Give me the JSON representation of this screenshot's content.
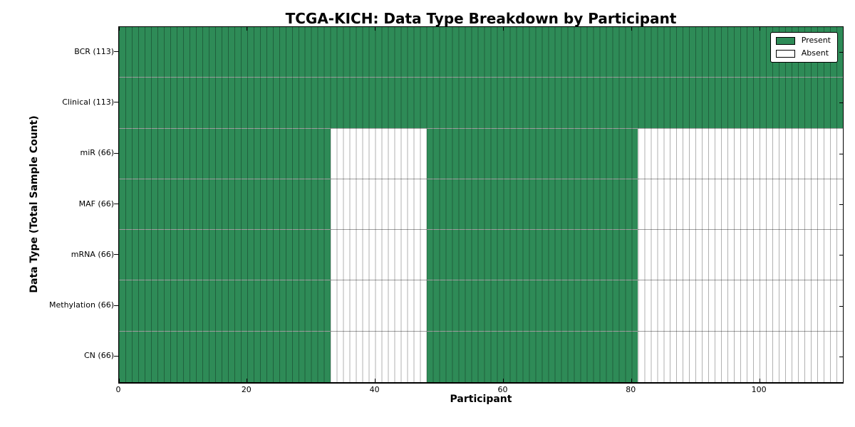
{
  "title": "TCGA-KICH: Data Type Breakdown by Participant",
  "xlabel": "Participant",
  "ylabel": "Data Type (Total Sample Count)",
  "legend": {
    "present_label": "Present",
    "absent_label": "Absent"
  },
  "colors": {
    "present": "#2e8b57",
    "absent": "#ffffff",
    "grid": "rgba(0,0,0,0.30)",
    "text": "#000000"
  },
  "chart_data": {
    "type": "heatmap",
    "title": "TCGA-KICH: Data Type Breakdown by Participant",
    "xlabel": "Participant",
    "ylabel": "Data Type (Total Sample Count)",
    "xlim": [
      0,
      113
    ],
    "x_ticks": [
      0,
      20,
      40,
      60,
      80,
      100
    ],
    "n_participants": 113,
    "legend_entries": [
      "Present",
      "Absent"
    ],
    "legend_position": "upper right",
    "grid": "per-participant vertical lines",
    "rows": [
      {
        "label": "BCR (113)",
        "total": 113,
        "present_runs": [
          [
            0,
            113
          ]
        ]
      },
      {
        "label": "Clinical (113)",
        "total": 113,
        "present_runs": [
          [
            0,
            113
          ]
        ]
      },
      {
        "label": "miR (66)",
        "total": 66,
        "present_runs": [
          [
            0,
            33
          ],
          [
            48,
            81
          ]
        ]
      },
      {
        "label": "MAF (66)",
        "total": 66,
        "present_runs": [
          [
            0,
            33
          ],
          [
            48,
            81
          ]
        ]
      },
      {
        "label": "mRNA (66)",
        "total": 66,
        "present_runs": [
          [
            0,
            33
          ],
          [
            48,
            81
          ]
        ]
      },
      {
        "label": "Methylation (66)",
        "total": 66,
        "present_runs": [
          [
            0,
            33
          ],
          [
            48,
            81
          ]
        ]
      },
      {
        "label": "CN (66)",
        "total": 66,
        "present_runs": [
          [
            0,
            33
          ],
          [
            48,
            81
          ]
        ]
      }
    ]
  }
}
